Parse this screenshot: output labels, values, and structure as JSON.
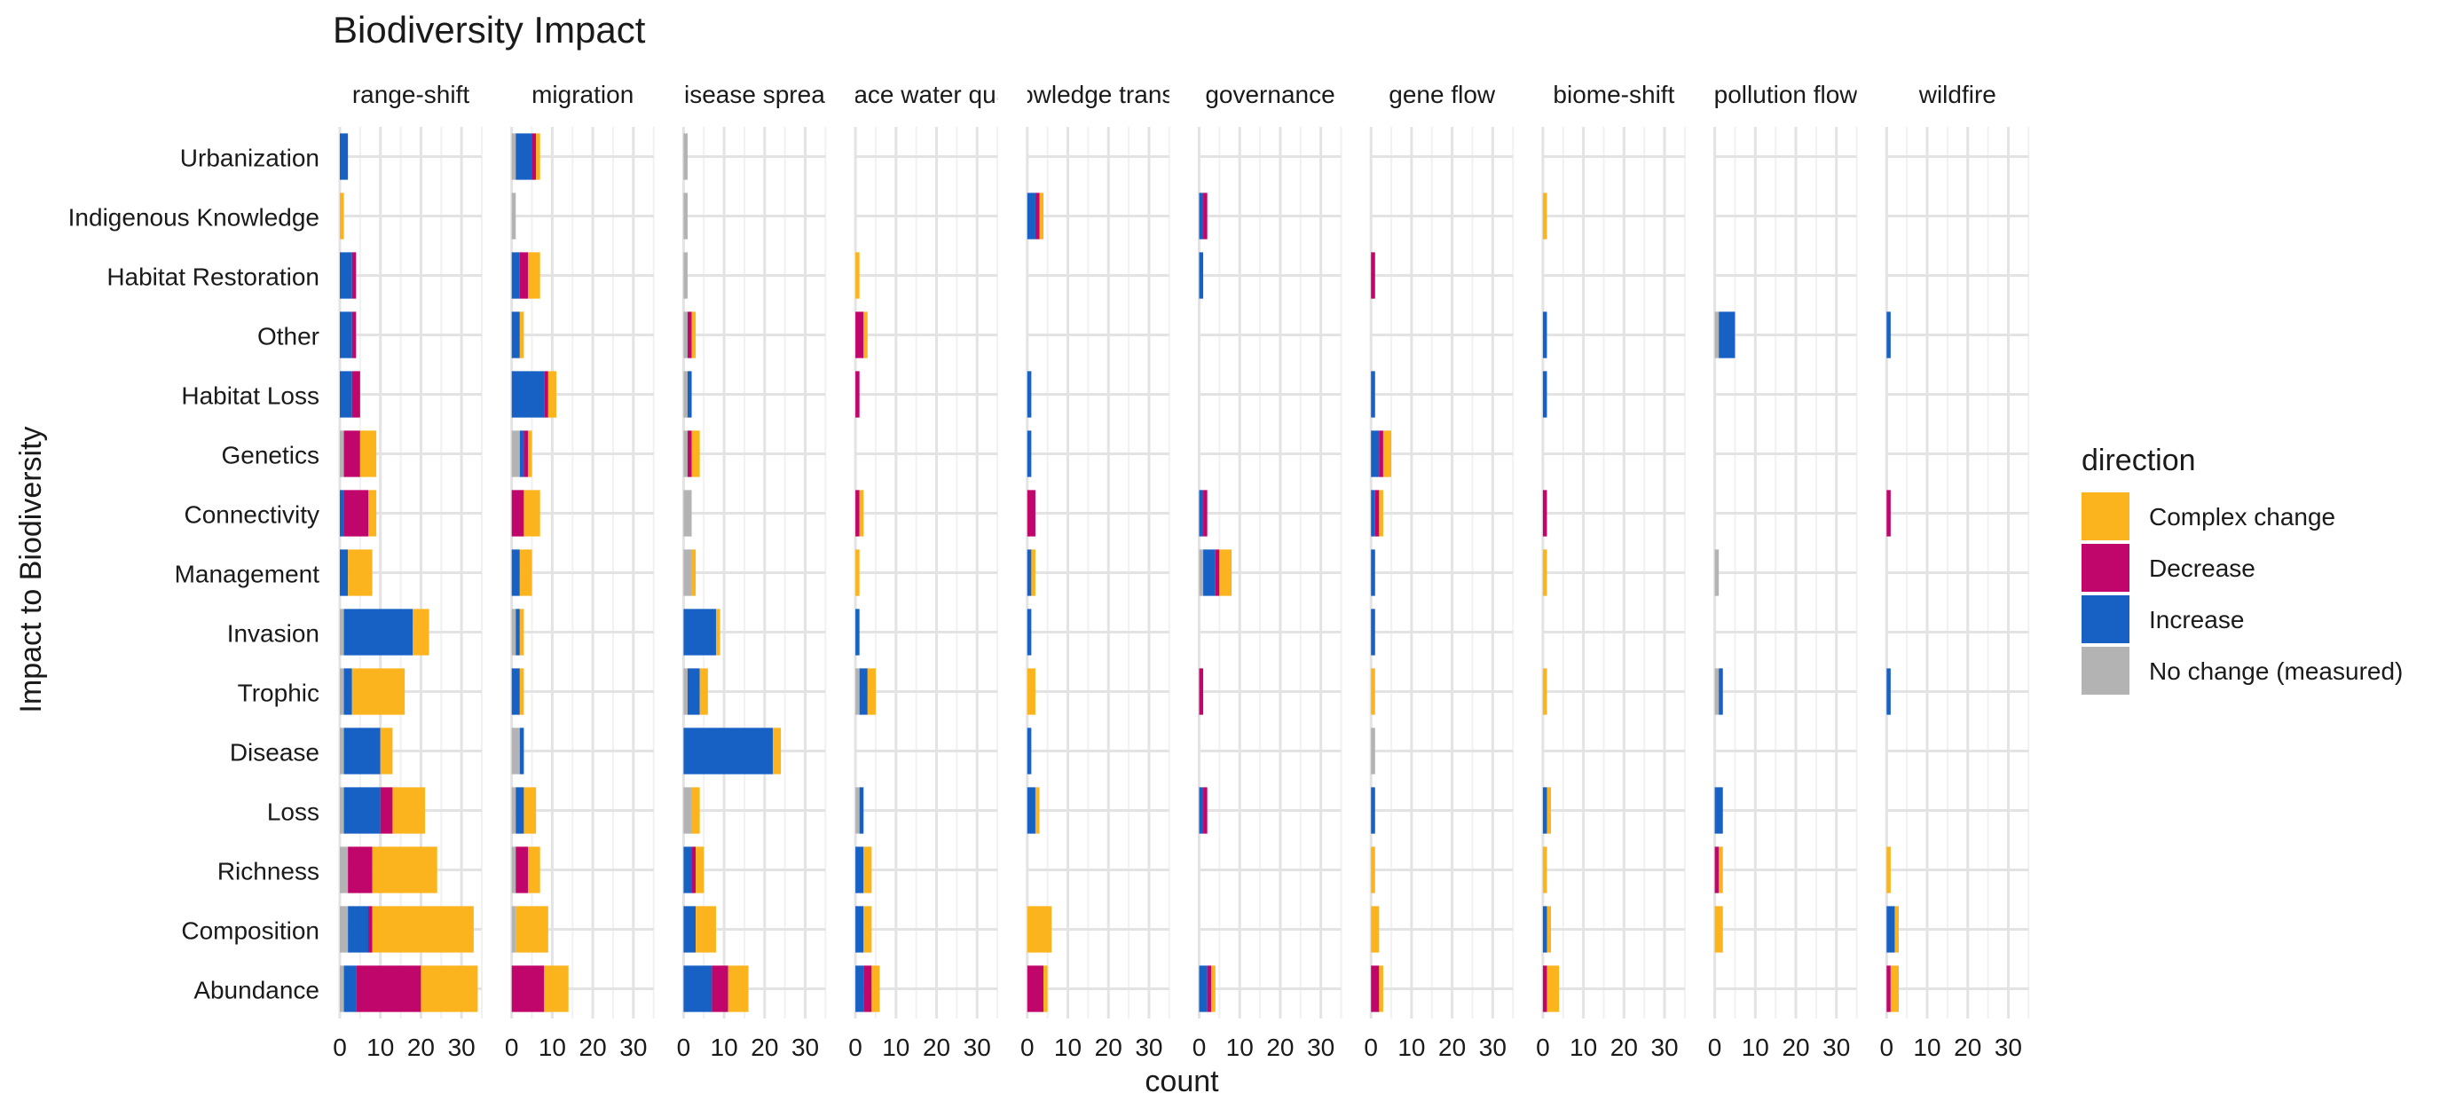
{
  "chart_data": {
    "type": "bar",
    "orientation": "horizontal",
    "stacked": true,
    "faceted": true,
    "title": "Biodiversity Impact",
    "xlabel": "count",
    "ylabel": "Impact to Biodiversity",
    "xlim": [
      0,
      35
    ],
    "x_ticks": [
      "0",
      "10",
      "20",
      "30"
    ],
    "grid": true,
    "legend": {
      "title": "direction",
      "position": "right",
      "entries": [
        {
          "key": "complex",
          "label": "Complex change",
          "color": "#FBB41E"
        },
        {
          "key": "decrease",
          "label": "Decrease",
          "color": "#C0056B"
        },
        {
          "key": "increase",
          "label": "Increase",
          "color": "#1760C4"
        },
        {
          "key": "nochange",
          "label": "No change (measured)",
          "color": "#B3B3B3"
        }
      ]
    },
    "stack_order": [
      "nochange",
      "increase",
      "decrease",
      "complex"
    ],
    "categories": [
      "Urbanization",
      "Indigenous Knowledge",
      "Habitat Restoration",
      "Other",
      "Habitat Loss",
      "Genetics",
      "Connectivity",
      "Management",
      "Invasion",
      "Trophic",
      "Disease",
      "Loss",
      "Richness",
      "Composition",
      "Abundance"
    ],
    "facets": [
      {
        "name": "range-shift",
        "values": {
          "Urbanization": {
            "increase": 2
          },
          "Indigenous Knowledge": {
            "complex": 1
          },
          "Habitat Restoration": {
            "increase": 3,
            "decrease": 1
          },
          "Other": {
            "increase": 3,
            "decrease": 1
          },
          "Habitat Loss": {
            "increase": 3,
            "decrease": 2
          },
          "Genetics": {
            "nochange": 1,
            "decrease": 4,
            "complex": 4
          },
          "Connectivity": {
            "increase": 1,
            "decrease": 6,
            "complex": 2
          },
          "Management": {
            "increase": 2,
            "complex": 6
          },
          "Invasion": {
            "nochange": 1,
            "increase": 17,
            "complex": 4
          },
          "Trophic": {
            "nochange": 1,
            "increase": 2,
            "complex": 13
          },
          "Disease": {
            "nochange": 1,
            "increase": 9,
            "complex": 3
          },
          "Loss": {
            "nochange": 1,
            "increase": 9,
            "decrease": 3,
            "complex": 8
          },
          "Richness": {
            "nochange": 2,
            "decrease": 6,
            "complex": 16
          },
          "Composition": {
            "nochange": 2,
            "increase": 5,
            "decrease": 1,
            "complex": 25
          },
          "Abundance": {
            "nochange": 1,
            "increase": 3,
            "decrease": 16,
            "complex": 14
          }
        }
      },
      {
        "name": "migration",
        "values": {
          "Urbanization": {
            "nochange": 1,
            "increase": 4,
            "decrease": 1,
            "complex": 1
          },
          "Indigenous Knowledge": {
            "nochange": 1
          },
          "Habitat Restoration": {
            "increase": 2,
            "decrease": 2,
            "complex": 3
          },
          "Other": {
            "increase": 2,
            "complex": 1
          },
          "Habitat Loss": {
            "increase": 8,
            "decrease": 1,
            "complex": 2
          },
          "Genetics": {
            "nochange": 2,
            "increase": 1,
            "decrease": 1,
            "complex": 1
          },
          "Connectivity": {
            "decrease": 3,
            "complex": 4
          },
          "Management": {
            "increase": 2,
            "complex": 3
          },
          "Invasion": {
            "nochange": 1,
            "increase": 1,
            "complex": 1
          },
          "Trophic": {
            "increase": 2,
            "complex": 1
          },
          "Disease": {
            "nochange": 2,
            "increase": 1
          },
          "Loss": {
            "nochange": 1,
            "increase": 2,
            "complex": 3
          },
          "Richness": {
            "nochange": 1,
            "decrease": 3,
            "complex": 3
          },
          "Composition": {
            "nochange": 1,
            "complex": 8
          },
          "Abundance": {
            "decrease": 8,
            "complex": 6
          }
        }
      },
      {
        "name": "disease spread",
        "values": {
          "Urbanization": {
            "nochange": 1
          },
          "Indigenous Knowledge": {
            "nochange": 1
          },
          "Habitat Restoration": {
            "nochange": 1
          },
          "Other": {
            "nochange": 1,
            "decrease": 1,
            "complex": 1
          },
          "Habitat Loss": {
            "nochange": 1,
            "increase": 1
          },
          "Genetics": {
            "nochange": 1,
            "decrease": 1,
            "complex": 2
          },
          "Connectivity": {
            "nochange": 2
          },
          "Management": {
            "nochange": 2,
            "complex": 1
          },
          "Invasion": {
            "increase": 8,
            "complex": 1
          },
          "Trophic": {
            "nochange": 1,
            "increase": 3,
            "complex": 2
          },
          "Disease": {
            "increase": 22,
            "complex": 2
          },
          "Loss": {
            "nochange": 2,
            "complex": 2
          },
          "Richness": {
            "increase": 2,
            "decrease": 1,
            "complex": 2
          },
          "Composition": {
            "increase": 3,
            "complex": 5
          },
          "Abundance": {
            "increase": 7,
            "decrease": 4,
            "complex": 5
          }
        }
      },
      {
        "name": "surface water quality",
        "values": {
          "Habitat Restoration": {
            "complex": 1
          },
          "Other": {
            "decrease": 2,
            "complex": 1
          },
          "Habitat Loss": {
            "decrease": 1
          },
          "Connectivity": {
            "decrease": 1,
            "complex": 1
          },
          "Management": {
            "complex": 1
          },
          "Invasion": {
            "increase": 1
          },
          "Trophic": {
            "nochange": 1,
            "increase": 2,
            "complex": 2
          },
          "Loss": {
            "nochange": 1,
            "increase": 1
          },
          "Richness": {
            "increase": 2,
            "complex": 2
          },
          "Composition": {
            "increase": 2,
            "complex": 2
          },
          "Abundance": {
            "increase": 2,
            "decrease": 2,
            "complex": 2
          }
        }
      },
      {
        "name": "knowledge transfer",
        "values": {
          "Indigenous Knowledge": {
            "increase": 2,
            "decrease": 1,
            "complex": 1
          },
          "Other": {},
          "Habitat Loss": {
            "increase": 1
          },
          "Genetics": {
            "increase": 1
          },
          "Connectivity": {
            "decrease": 2
          },
          "Management": {
            "increase": 1,
            "complex": 1
          },
          "Invasion": {
            "increase": 1
          },
          "Trophic": {
            "complex": 2
          },
          "Disease": {
            "increase": 1
          },
          "Loss": {
            "increase": 2,
            "complex": 1
          },
          "Composition": {
            "complex": 6
          },
          "Abundance": {
            "decrease": 4,
            "complex": 1
          }
        }
      },
      {
        "name": "governance",
        "values": {
          "Indigenous Knowledge": {
            "increase": 1,
            "decrease": 1
          },
          "Habitat Restoration": {
            "increase": 1
          },
          "Connectivity": {
            "increase": 1,
            "decrease": 1
          },
          "Management": {
            "nochange": 1,
            "increase": 3,
            "decrease": 1,
            "complex": 3
          },
          "Trophic": {
            "decrease": 1
          },
          "Loss": {
            "increase": 1,
            "decrease": 1
          },
          "Abundance": {
            "increase": 2,
            "decrease": 1,
            "complex": 1
          }
        }
      },
      {
        "name": "gene flow",
        "values": {
          "Habitat Restoration": {
            "decrease": 1
          },
          "Habitat Loss": {
            "increase": 1
          },
          "Genetics": {
            "increase": 2,
            "decrease": 1,
            "complex": 2
          },
          "Connectivity": {
            "increase": 1,
            "decrease": 1,
            "complex": 1
          },
          "Management": {
            "increase": 1
          },
          "Invasion": {
            "increase": 1
          },
          "Trophic": {
            "complex": 1
          },
          "Disease": {
            "nochange": 1
          },
          "Loss": {
            "increase": 1
          },
          "Richness": {
            "complex": 1
          },
          "Composition": {
            "complex": 2
          },
          "Abundance": {
            "decrease": 2,
            "complex": 1
          }
        }
      },
      {
        "name": "biome-shift",
        "values": {
          "Indigenous Knowledge": {
            "complex": 1
          },
          "Other": {
            "increase": 1
          },
          "Habitat Loss": {
            "increase": 1
          },
          "Connectivity": {
            "decrease": 1
          },
          "Management": {
            "complex": 1
          },
          "Trophic": {
            "complex": 1
          },
          "Loss": {
            "increase": 1,
            "complex": 1
          },
          "Richness": {
            "complex": 1
          },
          "Composition": {
            "increase": 1,
            "complex": 1
          },
          "Abundance": {
            "decrease": 1,
            "complex": 3
          }
        }
      },
      {
        "name": "pollution flow",
        "values": {
          "Other": {
            "nochange": 1,
            "increase": 4
          },
          "Management": {
            "nochange": 1
          },
          "Trophic": {
            "nochange": 1,
            "increase": 1
          },
          "Loss": {
            "increase": 2
          },
          "Richness": {
            "decrease": 1,
            "complex": 1
          },
          "Composition": {
            "complex": 2
          }
        }
      },
      {
        "name": "wildfire",
        "values": {
          "Other": {
            "increase": 1
          },
          "Connectivity": {
            "decrease": 1
          },
          "Trophic": {
            "increase": 1
          },
          "Richness": {
            "complex": 1
          },
          "Composition": {
            "increase": 2,
            "complex": 1
          },
          "Abundance": {
            "decrease": 1,
            "complex": 2
          }
        }
      }
    ]
  }
}
